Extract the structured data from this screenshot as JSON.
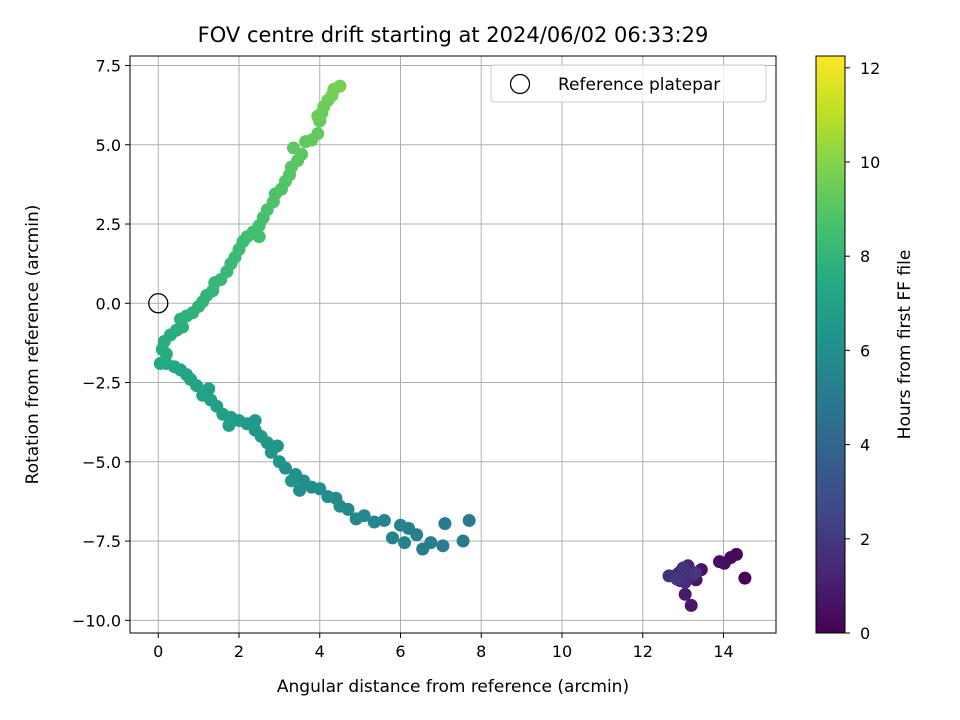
{
  "chart_data": {
    "type": "scatter",
    "title": "FOV centre drift starting at 2024/06/02 06:33:29",
    "xlabel": "Angular distance from reference (arcmin)",
    "ylabel": "Rotation from reference (arcmin)",
    "xlim": [
      -0.7,
      15.3
    ],
    "ylim": [
      -10.4,
      7.8
    ],
    "xticks": [
      0,
      2,
      4,
      6,
      8,
      10,
      12,
      14
    ],
    "xtick_labels": [
      "0",
      "2",
      "4",
      "6",
      "8",
      "10",
      "12",
      "14"
    ],
    "yticks": [
      -10.0,
      -7.5,
      -5.0,
      -2.5,
      0.0,
      2.5,
      5.0,
      7.5
    ],
    "ytick_labels": [
      "−10.0",
      "−7.5",
      "−5.0",
      "−2.5",
      "0.0",
      "2.5",
      "5.0",
      "7.5"
    ],
    "grid": true,
    "legend": {
      "position": "upper-right",
      "entries": [
        {
          "label": "Reference platepar",
          "marker": "open-circle"
        }
      ]
    },
    "reference_point": {
      "x": 0,
      "y": 0
    },
    "colorbar": {
      "label": "Hours from first FF file",
      "colormap": "viridis",
      "range": [
        0,
        12.25
      ],
      "ticks": [
        0,
        2,
        4,
        6,
        8,
        10,
        12
      ],
      "tick_labels": [
        "0",
        "2",
        "4",
        "6",
        "8",
        "10",
        "12"
      ]
    },
    "series": [
      {
        "points": [
          [
            14.53,
            -8.67,
            0.1
          ],
          [
            14.32,
            -7.92,
            0.2
          ],
          [
            14.18,
            -8.02,
            0.3
          ],
          [
            14.02,
            -8.2,
            0.4
          ],
          [
            13.9,
            -8.15,
            0.5
          ],
          [
            13.45,
            -8.4,
            0.6
          ],
          [
            13.32,
            -8.72,
            0.7
          ],
          [
            13.2,
            -9.53,
            0.8
          ],
          [
            13.05,
            -9.18,
            0.9
          ],
          [
            12.93,
            -8.75,
            1.0
          ],
          [
            12.8,
            -8.6,
            1.1
          ],
          [
            12.98,
            -8.4,
            1.2
          ],
          [
            13.12,
            -8.28,
            1.3
          ],
          [
            12.9,
            -8.5,
            1.4
          ],
          [
            13.22,
            -8.6,
            1.5
          ],
          [
            13.05,
            -8.8,
            1.6
          ],
          [
            12.65,
            -8.6,
            1.7
          ],
          [
            13.0,
            -8.35,
            1.8
          ],
          [
            13.3,
            -8.5,
            1.9
          ],
          [
            12.85,
            -8.7,
            2.0
          ],
          [
            7.7,
            -6.85,
            5.0
          ],
          [
            7.55,
            -7.5,
            5.05
          ],
          [
            7.1,
            -6.95,
            5.1
          ],
          [
            7.05,
            -7.65,
            5.15
          ],
          [
            6.75,
            -7.55,
            5.2
          ],
          [
            6.55,
            -7.75,
            5.25
          ],
          [
            6.4,
            -7.3,
            5.3
          ],
          [
            6.2,
            -7.1,
            5.35
          ],
          [
            6.1,
            -7.55,
            5.4
          ],
          [
            6.0,
            -7.0,
            5.45
          ],
          [
            5.8,
            -7.4,
            5.5
          ],
          [
            5.6,
            -6.85,
            5.55
          ],
          [
            5.35,
            -6.9,
            5.6
          ],
          [
            5.1,
            -6.7,
            5.65
          ],
          [
            4.9,
            -6.8,
            5.7
          ],
          [
            4.7,
            -6.5,
            5.75
          ],
          [
            4.5,
            -6.4,
            5.8
          ],
          [
            4.4,
            -6.15,
            5.85
          ],
          [
            4.2,
            -6.1,
            5.9
          ],
          [
            4.0,
            -5.85,
            5.95
          ],
          [
            3.8,
            -5.8,
            6.0
          ],
          [
            3.6,
            -5.6,
            6.05
          ],
          [
            3.5,
            -5.9,
            6.1
          ],
          [
            3.4,
            -5.4,
            6.15
          ],
          [
            3.3,
            -5.6,
            6.2
          ],
          [
            3.15,
            -5.2,
            6.25
          ],
          [
            3.0,
            -5.0,
            6.3
          ],
          [
            2.95,
            -4.5,
            6.35
          ],
          [
            2.8,
            -4.7,
            6.4
          ],
          [
            2.7,
            -4.4,
            6.45
          ],
          [
            2.55,
            -4.2,
            6.5
          ],
          [
            2.4,
            -4.0,
            6.55
          ],
          [
            2.4,
            -3.7,
            6.6
          ],
          [
            2.2,
            -3.8,
            6.65
          ],
          [
            2.0,
            -3.7,
            6.7
          ],
          [
            1.8,
            -3.6,
            6.75
          ],
          [
            1.75,
            -3.85,
            6.8
          ],
          [
            1.6,
            -3.5,
            6.85
          ],
          [
            1.45,
            -3.25,
            6.9
          ],
          [
            1.3,
            -3.05,
            6.95
          ],
          [
            1.25,
            -2.7,
            7.0
          ],
          [
            1.1,
            -2.9,
            7.05
          ],
          [
            0.95,
            -2.6,
            7.1
          ],
          [
            0.8,
            -2.4,
            7.15
          ],
          [
            0.7,
            -2.25,
            7.2
          ],
          [
            0.55,
            -2.1,
            7.25
          ],
          [
            0.4,
            -2.0,
            7.3
          ],
          [
            0.2,
            -1.9,
            7.35
          ],
          [
            0.05,
            -1.9,
            7.4
          ],
          [
            0.2,
            -1.6,
            7.45
          ],
          [
            0.1,
            -1.45,
            7.5
          ],
          [
            0.15,
            -1.2,
            7.55
          ],
          [
            0.3,
            -1.0,
            7.6
          ],
          [
            0.45,
            -0.85,
            7.65
          ],
          [
            0.6,
            -0.75,
            7.7
          ],
          [
            0.55,
            -0.5,
            7.75
          ],
          [
            0.7,
            -0.4,
            7.8
          ],
          [
            0.85,
            -0.3,
            7.85
          ],
          [
            1.0,
            -0.1,
            7.9
          ],
          [
            1.1,
            0.05,
            7.95
          ],
          [
            1.2,
            0.25,
            8.0
          ],
          [
            1.35,
            0.4,
            8.05
          ],
          [
            1.4,
            0.65,
            8.1
          ],
          [
            1.55,
            0.75,
            8.15
          ],
          [
            1.7,
            1.0,
            8.2
          ],
          [
            1.8,
            1.25,
            8.25
          ],
          [
            1.9,
            1.45,
            8.3
          ],
          [
            2.0,
            1.7,
            8.35
          ],
          [
            2.1,
            1.95,
            8.4
          ],
          [
            2.2,
            2.1,
            8.45
          ],
          [
            2.35,
            2.25,
            8.5
          ],
          [
            2.5,
            2.1,
            8.55
          ],
          [
            2.5,
            2.45,
            8.6
          ],
          [
            2.6,
            2.7,
            8.65
          ],
          [
            2.7,
            2.95,
            8.7
          ],
          [
            2.85,
            3.2,
            8.75
          ],
          [
            2.9,
            3.45,
            8.8
          ],
          [
            3.05,
            3.6,
            8.85
          ],
          [
            3.15,
            3.85,
            8.9
          ],
          [
            3.25,
            4.05,
            8.95
          ],
          [
            3.3,
            4.3,
            9.0
          ],
          [
            3.45,
            4.5,
            9.05
          ],
          [
            3.55,
            4.7,
            9.1
          ],
          [
            3.35,
            4.9,
            9.15
          ],
          [
            3.65,
            5.1,
            9.2
          ],
          [
            3.8,
            5.15,
            9.25
          ],
          [
            3.95,
            5.35,
            9.3
          ],
          [
            4.0,
            5.75,
            9.35
          ],
          [
            4.05,
            6.0,
            9.4
          ],
          [
            3.95,
            5.9,
            9.45
          ],
          [
            4.1,
            6.2,
            9.5
          ],
          [
            4.2,
            6.4,
            9.55
          ],
          [
            4.3,
            6.55,
            9.6
          ],
          [
            4.35,
            6.75,
            9.65
          ],
          [
            4.5,
            6.85,
            9.7
          ]
        ]
      }
    ]
  }
}
